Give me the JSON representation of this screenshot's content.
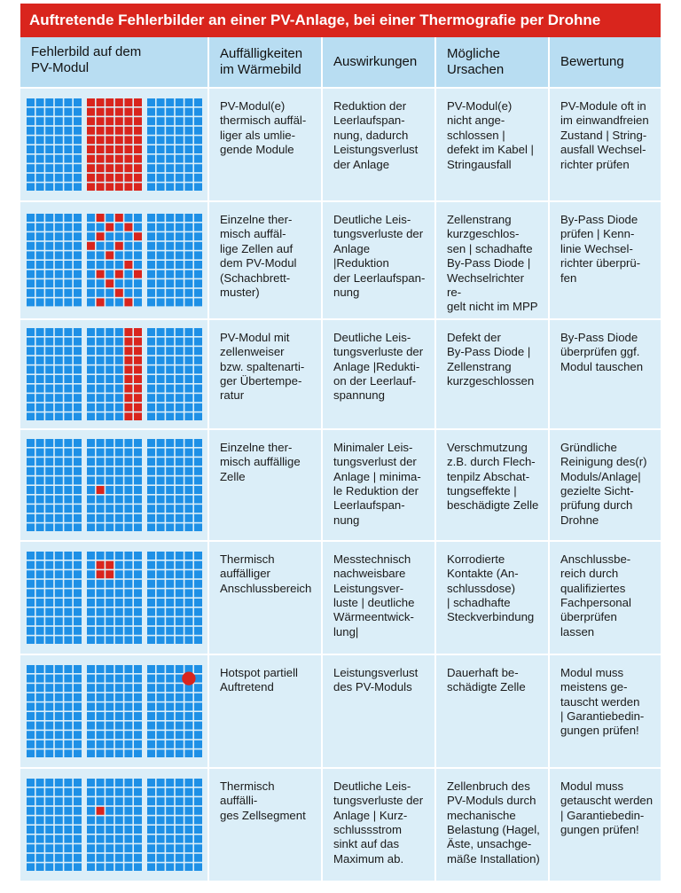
{
  "title": "Auftretende Fehlerbilder an einer PV-Anlage, bei einer Thermografie per Drohne",
  "headers": [
    "Fehlerbild auf dem\nPV-Modul",
    "Auffälligkeiten\nim Wärmebild",
    "Auswirkungen",
    "Mögliche\nUrsachen",
    "Bewertung"
  ],
  "colors": {
    "title_bg": "#d9251d",
    "header_bg": "#b8ddf2",
    "row_bg": "#dbeef8",
    "cell_blue": "#1e90e6",
    "cell_red": "#d9251d"
  },
  "rows": [
    {
      "pattern": "module-hot",
      "auffaelligkeiten": "PV-Modul(e)\nthermisch auffäl-\nliger als umlie-\ngende Module",
      "auswirkungen": "Reduktion der\nLeerlaufspan-\nnung, dadurch\nLeistungsverlust\nder Anlage",
      "ursachen": "PV-Modul(e)\nnicht ange-\nschlossen |\ndefekt im Kabel |\nStringausfall",
      "bewertung": "PV-Module oft in\nim einwandfreien\nZustand | String-\nausfall Wechsel-\nrichter prüfen"
    },
    {
      "pattern": "checkerboard",
      "auffaelligkeiten": "Einzelne ther-\nmisch auffäl-\nlige Zellen auf\ndem PV-Modul\n(Schachbrett-\nmuster)",
      "auswirkungen": "Deutliche Leis-\ntungsverluste der\nAnlage |Reduktion\nder Leerlaufspan-\nnung",
      "ursachen": "Zellenstrang\nkurzgeschlos-\nsen | schadhafte\nBy-Pass Diode |\nWechselrichter re-\ngelt nicht im MPP",
      "bewertung": "By-Pass Diode\nprüfen | Kenn-\nlinie Wechsel-\nrichter überprü-\nfen"
    },
    {
      "pattern": "column",
      "auffaelligkeiten": "PV-Modul mit\nzellenweiser\nbzw. spaltenarti-\nger Übertempe-\nratur",
      "auswirkungen": "Deutliche Leis-\ntungsverluste der\nAnlage |Redukti-\non der Leerlauf-\nspannung",
      "ursachen": "Defekt der\nBy-Pass Diode |\nZellenstrang\nkurzgeschlossen",
      "bewertung": "By-Pass Diode\nüberprüfen ggf.\nModul tauschen"
    },
    {
      "pattern": "single-cell",
      "auffaelligkeiten": "Einzelne ther-\nmisch auffällige\nZelle",
      "auswirkungen": "Minimaler Leis-\ntungsverlust der\nAnlage | minima-\nle Reduktion der\nLeerlaufspan-\nnung",
      "ursachen": "Verschmutzung\nz.B. durch Flech-\ntenpilz  Abschat-\ntungseffekte |\nbeschädigte Zelle",
      "bewertung": "Gründliche\nReinigung des(r)\nModuls/Anlage|\ngezielte Sicht-\nprüfung durch\nDrohne"
    },
    {
      "pattern": "junction",
      "auffaelligkeiten": "Thermisch\nauffälliger\nAnschlussbereich",
      "auswirkungen": "Messtechnisch\nnachweisbare\nLeistungsver-\nluste | deutliche\nWärmeentwick-\nlung|",
      "ursachen": "Korrodierte\nKontakte (An-\nschlussdose)\n| schadhafte\nSteckverbindung",
      "bewertung": "Anschlussbe-\nreich durch\nqualifiziertes\nFachpersonal\nüberprüfen\nlassen"
    },
    {
      "pattern": "hotspot",
      "auffaelligkeiten": "Hotspot partiell\nAuftretend",
      "auswirkungen": "Leistungsverlust\ndes PV-Moduls",
      "ursachen": "Dauerhaft be-\nschädigte Zelle",
      "bewertung": "Modul muss\nmeistens ge-\ntauscht werden\n| Garantiebedin-\ngungen prüfen!"
    },
    {
      "pattern": "segment",
      "auffaelligkeiten": "Thermisch auffälli-\nges Zellsegment",
      "auswirkungen": "Deutliche Leis-\ntungsverluste der\nAnlage | Kurz-\nschlussstrom\nsinkt auf das\nMaximum ab.",
      "ursachen": "Zellenbruch des\nPV-Moduls durch\nmechanische\nBelastung (Hagel,\nÄste, unsachge-\nmäße Installation)",
      "bewertung": "Modul muss\ngetauscht werden\n| Garantiebedin-\ngungen prüfen!"
    }
  ]
}
